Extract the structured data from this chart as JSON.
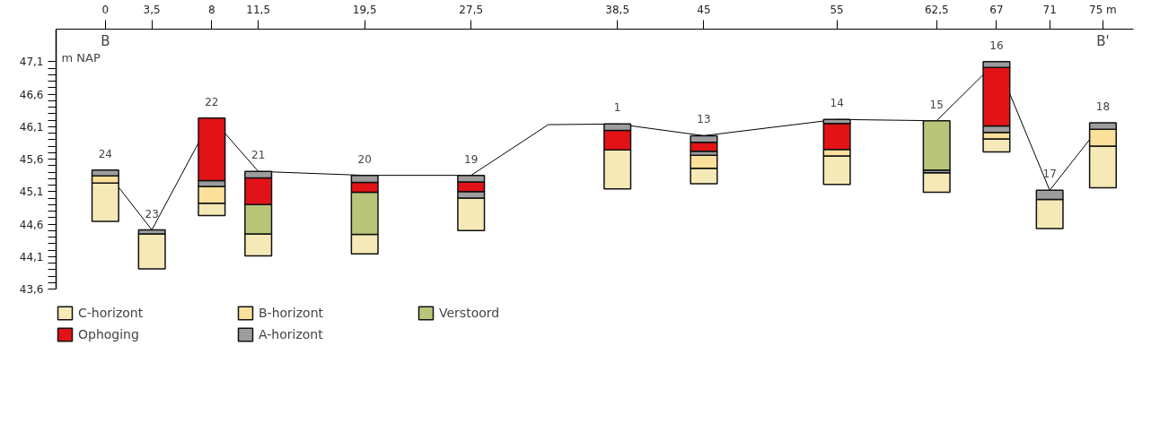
{
  "chart_data": {
    "type": "bar",
    "legend": "bottom",
    "grid": false,
    "x": [
      0,
      3.5,
      8,
      11.5,
      19.5,
      27.5,
      38.5,
      45,
      55,
      62.5,
      67,
      71,
      75
    ],
    "series": [
      {
        "name": "C-horizont",
        "color": "#f5e9b7",
        "base": [
          44.64,
          43.91,
          44.73,
          44.11,
          44.14,
          44.5,
          45.14,
          45.22,
          45.21,
          45.09,
          45.71,
          44.53,
          45.16
        ],
        "values": [
          0.59,
          0.54,
          0.19,
          0.34,
          0.3,
          0.5,
          0.6,
          0.24,
          0.44,
          0.3,
          0.2,
          0.45,
          0.64
        ]
      },
      {
        "name": "B-horizont",
        "color": "#fbe09b",
        "base": [
          45.23,
          null,
          44.92,
          null,
          null,
          null,
          null,
          45.46,
          45.65,
          null,
          45.91,
          null,
          45.8
        ],
        "values": [
          0.11,
          null,
          0.26,
          null,
          null,
          null,
          null,
          0.2,
          0.1,
          null,
          0.1,
          null,
          0.26
        ]
      },
      {
        "color": "#9d9d9d",
        "base": [
          null,
          null,
          45.18,
          null,
          null,
          45.0,
          null,
          45.66,
          null,
          45.39,
          46.01,
          null,
          null
        ],
        "values": [
          null,
          null,
          0.09,
          null,
          null,
          0.1,
          null,
          0.06,
          null,
          0.04,
          0.1,
          null,
          null
        ]
      },
      {
        "name": "Verstoord",
        "color": "#b9c67a",
        "base": [
          null,
          null,
          null,
          44.45,
          44.44,
          null,
          null,
          null,
          null,
          45.43,
          null,
          null,
          null
        ],
        "values": [
          null,
          null,
          null,
          0.45,
          0.65,
          null,
          null,
          null,
          null,
          0.76,
          null,
          null,
          null
        ]
      },
      {
        "name": "Ophoging",
        "color": "#e21316",
        "base": [
          null,
          null,
          45.27,
          44.9,
          45.09,
          45.1,
          45.74,
          45.72,
          45.75,
          null,
          46.11,
          null,
          null
        ],
        "values": [
          null,
          null,
          0.96,
          0.41,
          0.15,
          0.15,
          0.3,
          0.14,
          0.4,
          null,
          0.9,
          null,
          null
        ]
      },
      {
        "name": "A-horizont",
        "color": "#9d9d9d",
        "base": [
          45.34,
          44.45,
          null,
          45.31,
          45.24,
          45.25,
          46.04,
          45.86,
          46.15,
          null,
          47.01,
          44.98,
          46.06
        ],
        "values": [
          0.09,
          0.06,
          null,
          0.1,
          0.11,
          0.1,
          0.1,
          0.1,
          0.06,
          null,
          0.09,
          0.14,
          0.1
        ]
      },
      {
        "type": "line",
        "color": "#000000",
        "x": [
          0,
          3.5,
          8,
          11.5,
          19.5,
          27.5,
          33.3,
          38.5,
          45,
          55,
          62.5,
          67,
          71,
          75
        ],
        "values": [
          45.43,
          44.51,
          46.23,
          45.41,
          45.35,
          45.35,
          46.13,
          46.14,
          45.96,
          46.21,
          46.19,
          47.1,
          45.12,
          46.16
        ]
      }
    ],
    "ylabel": "m NAP",
    "xlim": [
      -3.7,
      77.3
    ],
    "ylim": [
      43.6,
      47.6
    ],
    "xticks": [
      0,
      {
        "value": 3.5,
        "label": "3,5"
      },
      8,
      {
        "value": 11.5,
        "label": "11,5"
      },
      {
        "value": 19.5,
        "label": "19,5"
      },
      {
        "value": 27.5,
        "label": "27,5"
      },
      {
        "value": 38.5,
        "label": "38,5"
      },
      45,
      55,
      {
        "value": 62.5,
        "label": "62,5"
      },
      67,
      71,
      {
        "value": 75,
        "label": "75 m"
      }
    ],
    "yticks": [
      {
        "value": 43.6,
        "label": "43,6"
      },
      {
        "value": 43.7,
        "label": null
      },
      {
        "value": 43.8,
        "label": null
      },
      {
        "value": 43.9,
        "label": null
      },
      {
        "value": 44.0,
        "label": null
      },
      {
        "value": 44.1,
        "label": "44,1"
      },
      {
        "value": 44.2,
        "label": null
      },
      {
        "value": 44.3,
        "label": null
      },
      {
        "value": 44.4,
        "label": null
      },
      {
        "value": 44.5,
        "label": null
      },
      {
        "value": 44.6,
        "label": "44,6"
      },
      {
        "value": 44.7,
        "label": null
      },
      {
        "value": 44.8,
        "label": null
      },
      {
        "value": 44.9,
        "label": null
      },
      {
        "value": 45.0,
        "label": null
      },
      {
        "value": 45.1,
        "label": "45,1"
      },
      {
        "value": 45.2,
        "label": null
      },
      {
        "value": 45.3,
        "label": null
      },
      {
        "value": 45.4,
        "label": null
      },
      {
        "value": 45.5,
        "label": null
      },
      {
        "value": 45.6,
        "label": "45,6"
      },
      {
        "value": 45.7,
        "label": null
      },
      {
        "value": 45.8,
        "label": null
      },
      {
        "value": 45.9,
        "label": null
      },
      {
        "value": 46.0,
        "label": null
      },
      {
        "value": 46.1,
        "label": "46,1"
      },
      {
        "value": 46.2,
        "label": null
      },
      {
        "value": 46.3,
        "label": null
      },
      {
        "value": 46.4,
        "label": null
      },
      {
        "value": 46.5,
        "label": null
      },
      {
        "value": 46.6,
        "label": "46,6"
      },
      {
        "value": 46.7,
        "label": null
      },
      {
        "value": 46.8,
        "label": null
      },
      {
        "value": 46.9,
        "label": null
      },
      {
        "value": 47.0,
        "label": null
      },
      {
        "value": 47.1,
        "label": "47,1"
      }
    ],
    "annotations": [
      "B",
      "B'",
      {
        "text": "24",
        "x": 0,
        "y": 45.43
      },
      {
        "text": "23",
        "x": 3.5,
        "y": 44.51
      },
      {
        "text": "22",
        "x": 8,
        "y": 46.23
      },
      {
        "text": "21",
        "x": 11.5,
        "y": 45.41
      },
      {
        "text": "20",
        "x": 19.5,
        "y": 45.35
      },
      {
        "text": "19",
        "x": 27.5,
        "y": 45.35
      },
      {
        "text": "1",
        "x": 38.5,
        "y": 46.14
      },
      {
        "text": "13",
        "x": 45,
        "y": 45.96
      },
      {
        "text": "14",
        "x": 55,
        "y": 46.21
      },
      {
        "text": "15",
        "x": 62.5,
        "y": 46.19
      },
      {
        "text": "16",
        "x": 67,
        "y": 47.1
      },
      {
        "text": "17",
        "x": 71,
        "y": 45.12
      },
      {
        "text": "18",
        "x": 75,
        "y": 46.16
      }
    ]
  }
}
